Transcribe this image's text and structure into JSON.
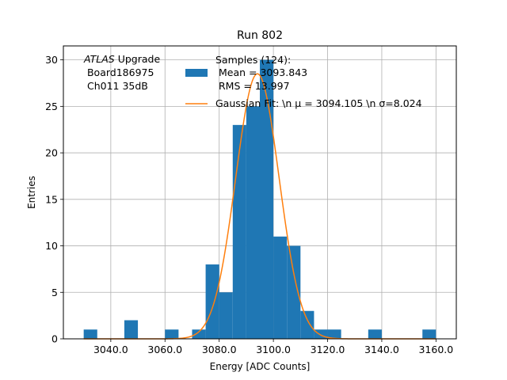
{
  "chart_data": {
    "type": "bar",
    "title": "Run 802",
    "xlabel": "Energy [ADC Counts]",
    "ylabel": "Entries",
    "xlim": [
      3022.5,
      3167.5
    ],
    "ylim": [
      0,
      31.5
    ],
    "xticks": [
      3040,
      3060,
      3080,
      3100,
      3120,
      3140,
      3160
    ],
    "xtick_labels": [
      "3040.0",
      "3060.0",
      "3080.0",
      "3100.0",
      "3120.0",
      "3140.0",
      "3160.0"
    ],
    "yticks": [
      0,
      5,
      10,
      15,
      20,
      25,
      30
    ],
    "ytick_labels": [
      "0",
      "5",
      "10",
      "15",
      "20",
      "25",
      "30"
    ],
    "grid": true,
    "bin_width": 5,
    "histogram": [
      {
        "x0": 3030,
        "x1": 3035,
        "count": 1
      },
      {
        "x0": 3045,
        "x1": 3050,
        "count": 2
      },
      {
        "x0": 3060,
        "x1": 3065,
        "count": 1
      },
      {
        "x0": 3070,
        "x1": 3075,
        "count": 1
      },
      {
        "x0": 3075,
        "x1": 3080,
        "count": 8
      },
      {
        "x0": 3080,
        "x1": 3085,
        "count": 5
      },
      {
        "x0": 3085,
        "x1": 3090,
        "count": 23
      },
      {
        "x0": 3090,
        "x1": 3095,
        "count": 25
      },
      {
        "x0": 3095,
        "x1": 3100,
        "count": 30
      },
      {
        "x0": 3100,
        "x1": 3105,
        "count": 11
      },
      {
        "x0": 3105,
        "x1": 3110,
        "count": 10
      },
      {
        "x0": 3110,
        "x1": 3115,
        "count": 3
      },
      {
        "x0": 3115,
        "x1": 3120,
        "count": 1
      },
      {
        "x0": 3120,
        "x1": 3125,
        "count": 1
      },
      {
        "x0": 3135,
        "x1": 3140,
        "count": 1
      },
      {
        "x0": 3155,
        "x1": 3160,
        "count": 1
      }
    ],
    "gaussian_fit": {
      "mu": 3094.105,
      "sigma": 8.024,
      "amplitude": 28.5,
      "x_range": [
        3030,
        3160
      ]
    },
    "series": [
      {
        "name": "Samples (124):\n Mean = 3093.843\n RMS = 13.997",
        "color": "#1f77b4",
        "kind": "histogram"
      },
      {
        "name": "Gaussian Fit: \\n $\\mu$ = 3094.105 \\n $\\sigma$=8.024",
        "color": "#ff7f0e",
        "kind": "line"
      }
    ],
    "legend": {
      "placement": "top-right",
      "entries": [
        {
          "lines": [
            "Samples (124):",
            " Mean = 3093.843",
            " RMS = 13.997"
          ],
          "color": "#1f77b4",
          "kind": "patch"
        },
        {
          "lines": [
            "Gaussian Fit: \\n μ = 3094.105 \\n σ=8.024"
          ],
          "color": "#ff7f0e",
          "kind": "line"
        }
      ]
    },
    "annotation": {
      "lines": [
        "ATLAS Upgrade",
        " Board186975",
        " Ch011 35dB"
      ],
      "italic_prefix": "ATLAS",
      "placement": "top-left"
    }
  }
}
